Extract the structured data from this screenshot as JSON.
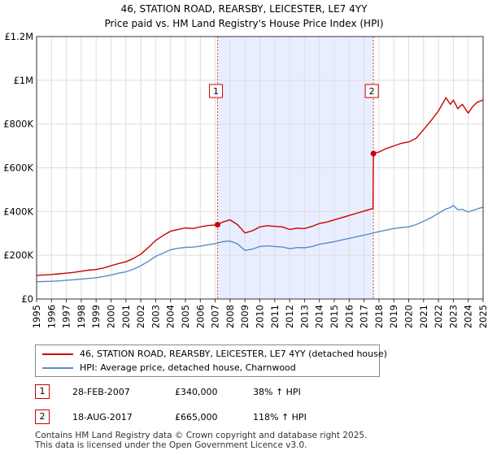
{
  "chart_data": {
    "type": "line",
    "title": "46, STATION ROAD, REARSBY, LEICESTER, LE7 4YY",
    "subtitle": "Price paid vs. HM Land Registry's House Price Index (HPI)",
    "xlabel": "",
    "ylabel": "",
    "xlim": [
      1995,
      2025
    ],
    "ylim": [
      0,
      1200000
    ],
    "y_ticks": [
      0,
      200000,
      400000,
      600000,
      800000,
      1000000,
      1200000
    ],
    "y_tick_labels": [
      "£0",
      "£200K",
      "£400K",
      "£600K",
      "£800K",
      "£1M",
      "£1.2M"
    ],
    "x_ticks": [
      1995,
      1996,
      1997,
      1998,
      1999,
      2000,
      2001,
      2002,
      2003,
      2004,
      2005,
      2006,
      2007,
      2008,
      2009,
      2010,
      2011,
      2012,
      2013,
      2014,
      2015,
      2016,
      2017,
      2018,
      2019,
      2020,
      2021,
      2022,
      2023,
      2024,
      2025
    ],
    "grid": true,
    "highlight_span": [
      2007.16,
      2017.63
    ],
    "series": [
      {
        "name": "46, STATION ROAD, REARSBY, LEICESTER, LE7 4YY (detached house)",
        "color": "#cc0000",
        "x": [
          1995.0,
          1995.5,
          1996.0,
          1996.5,
          1997.0,
          1997.5,
          1998.0,
          1998.5,
          1999.0,
          1999.5,
          2000.0,
          2000.5,
          2001.0,
          2001.5,
          2002.0,
          2002.5,
          2003.0,
          2003.5,
          2004.0,
          2004.5,
          2005.0,
          2005.5,
          2006.0,
          2006.5,
          2007.0,
          2007.16,
          2007.5,
          2008.0,
          2008.5,
          2009.0,
          2009.5,
          2010.0,
          2010.5,
          2011.0,
          2011.5,
          2012.0,
          2012.5,
          2013.0,
          2013.5,
          2014.0,
          2014.5,
          2015.0,
          2015.5,
          2016.0,
          2016.5,
          2017.0,
          2017.5,
          2017.6,
          2017.63,
          2018.0,
          2018.5,
          2019.0,
          2019.5,
          2020.0,
          2020.5,
          2021.0,
          2021.5,
          2022.0,
          2022.5,
          2022.8,
          2023.0,
          2023.3,
          2023.6,
          2024.0,
          2024.3,
          2024.6,
          2025.0
        ],
        "values": [
          108000,
          110000,
          112000,
          115000,
          118000,
          122000,
          127000,
          132000,
          135000,
          142000,
          152000,
          162000,
          170000,
          185000,
          205000,
          235000,
          268000,
          290000,
          310000,
          318000,
          325000,
          322000,
          330000,
          336000,
          338000,
          340000,
          352000,
          362000,
          340000,
          302000,
          312000,
          330000,
          335000,
          332000,
          330000,
          318000,
          324000,
          322000,
          332000,
          345000,
          352000,
          362000,
          372000,
          382000,
          392000,
          402000,
          412000,
          414000,
          665000,
          672000,
          688000,
          700000,
          712000,
          718000,
          735000,
          775000,
          815000,
          860000,
          920000,
          890000,
          910000,
          870000,
          890000,
          850000,
          880000,
          900000,
          910000
        ]
      },
      {
        "name": "HPI: Average price, detached house, Charnwood",
        "color": "#5b8cc8",
        "x": [
          1995.0,
          1995.5,
          1996.0,
          1996.5,
          1997.0,
          1997.5,
          1998.0,
          1998.5,
          1999.0,
          1999.5,
          2000.0,
          2000.5,
          2001.0,
          2001.5,
          2002.0,
          2002.5,
          2003.0,
          2003.5,
          2004.0,
          2004.5,
          2005.0,
          2005.5,
          2006.0,
          2006.5,
          2007.0,
          2007.5,
          2008.0,
          2008.5,
          2009.0,
          2009.5,
          2010.0,
          2010.5,
          2011.0,
          2011.5,
          2012.0,
          2012.5,
          2013.0,
          2013.5,
          2014.0,
          2014.5,
          2015.0,
          2015.5,
          2016.0,
          2016.5,
          2017.0,
          2017.5,
          2018.0,
          2018.5,
          2019.0,
          2019.5,
          2020.0,
          2020.5,
          2021.0,
          2021.5,
          2022.0,
          2022.5,
          2022.8,
          2023.0,
          2023.3,
          2023.6,
          2024.0,
          2024.3,
          2024.6,
          2025.0
        ],
        "values": [
          79000,
          80000,
          81000,
          83000,
          86000,
          88000,
          91000,
          94000,
          97000,
          103000,
          110000,
          118000,
          124000,
          136000,
          152000,
          172000,
          195000,
          210000,
          225000,
          232000,
          236000,
          237000,
          242000,
          248000,
          253000,
          262000,
          265000,
          252000,
          222000,
          228000,
          240000,
          243000,
          240000,
          238000,
          230000,
          235000,
          234000,
          240000,
          250000,
          256000,
          262000,
          270000,
          277000,
          285000,
          292000,
          300000,
          308000,
          315000,
          322000,
          327000,
          330000,
          340000,
          356000,
          372000,
          392000,
          412000,
          418000,
          428000,
          408000,
          410000,
          398000,
          405000,
          412000,
          420000
        ]
      }
    ],
    "annotations": [
      {
        "label": "1",
        "x": 2007.16,
        "value": 340000
      },
      {
        "label": "2",
        "x": 2017.63,
        "value": 665000
      }
    ]
  },
  "legend": {
    "property_label": "46, STATION ROAD, REARSBY, LEICESTER, LE7 4YY (detached house)",
    "hpi_label": "HPI: Average price, detached house, Charnwood"
  },
  "sales": [
    {
      "num": "1",
      "date": "28-FEB-2007",
      "price": "£340,000",
      "hpi": "38% ↑ HPI"
    },
    {
      "num": "2",
      "date": "18-AUG-2017",
      "price": "£665,000",
      "hpi": "118% ↑ HPI"
    }
  ],
  "footer": {
    "line1": "Contains HM Land Registry data © Crown copyright and database right 2025.",
    "line2": "This data is licensed under the Open Government Licence v3.0."
  }
}
